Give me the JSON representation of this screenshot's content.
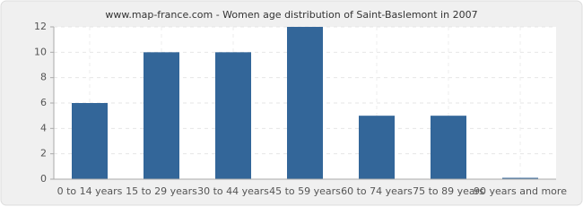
{
  "chart_data": {
    "type": "bar",
    "title": "www.map-france.com - Women age distribution of Saint-Baslemont in 2007",
    "categories": [
      "0 to 14 years",
      "15 to 29 years",
      "30 to 44 years",
      "45 to 59 years",
      "60 to 74 years",
      "75 to 89 years",
      "90 years and more"
    ],
    "values": [
      6,
      10,
      10,
      12,
      5,
      5,
      0
    ],
    "color": "#336699",
    "ylim": [
      0,
      12
    ],
    "yticks": [
      0,
      2,
      4,
      6,
      8,
      10,
      12
    ],
    "grid": true
  }
}
